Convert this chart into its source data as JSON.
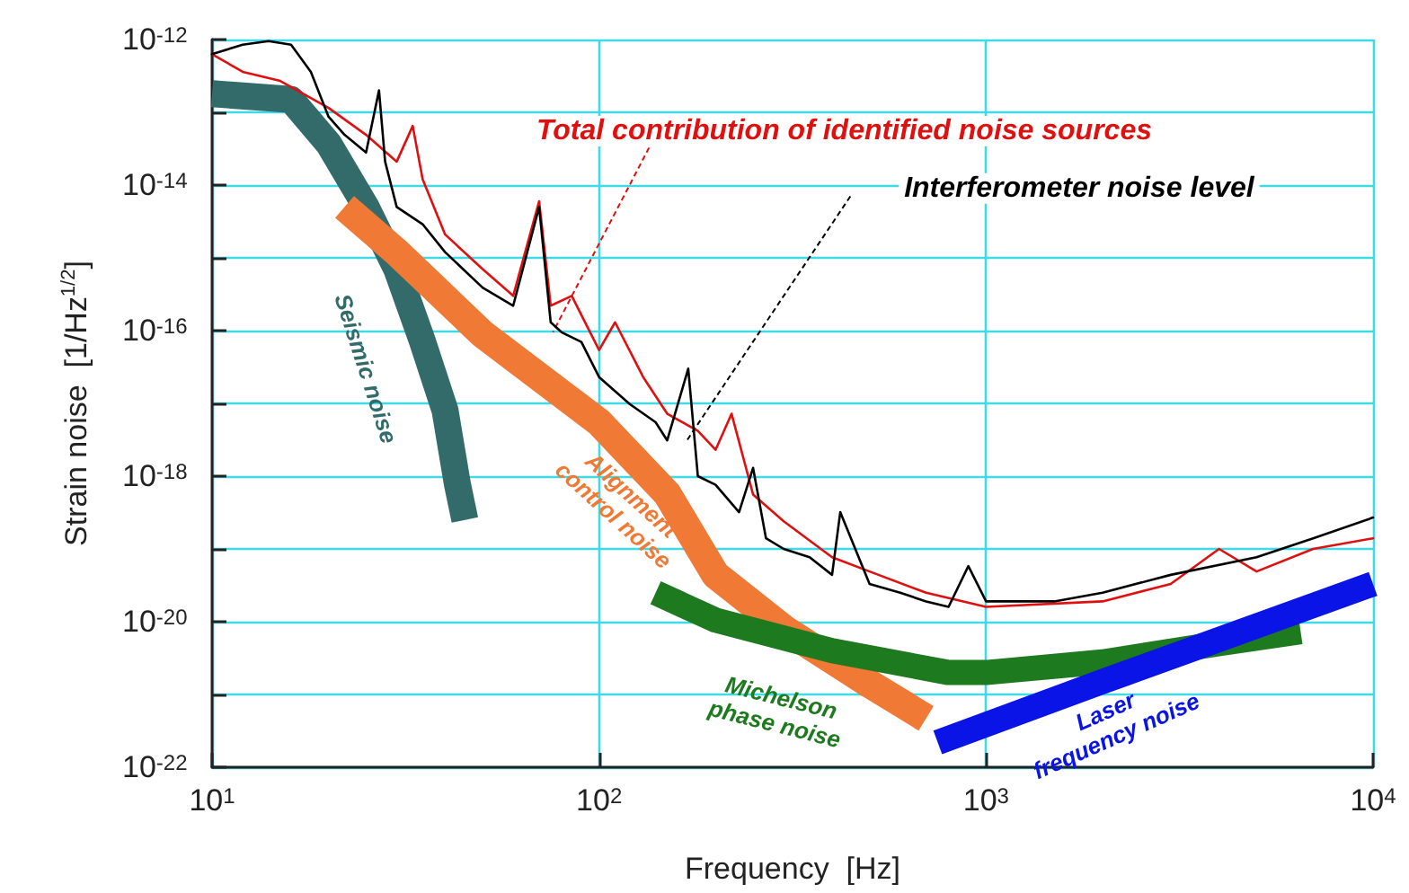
{
  "chart_data": {
    "type": "line",
    "xlabel": "Frequency  [Hz]",
    "ylabel": "Strain noise  [1/Hz$^{1/2}$]",
    "log": "xy",
    "grid": true,
    "legend": false,
    "marker": "none",
    "line_style": "solid",
    "xlim": [
      10,
      10000
    ],
    "ylim": [
      1e-22,
      1e-12
    ],
    "xticks": [
      {
        "value": 10,
        "label": "10$^{1}$"
      },
      {
        "value": 100,
        "label": "10$^{2}$"
      },
      {
        "value": 1000,
        "label": "10$^{3}$"
      },
      {
        "value": 10000,
        "label": "10$^{4}$"
      }
    ],
    "yticks": [
      {
        "value": 1e-22,
        "label": "10$^{-22}$"
      },
      {
        "value": 1e-21,
        "label": null
      },
      {
        "value": 1e-20,
        "label": "10$^{-20}$"
      },
      {
        "value": 1e-19,
        "label": null
      },
      {
        "value": 1e-18,
        "label": "10$^{-18}$"
      },
      {
        "value": 1e-17,
        "label": null
      },
      {
        "value": 1e-16,
        "label": "10$^{-16}$"
      },
      {
        "value": 1e-15,
        "label": null
      },
      {
        "value": 1e-14,
        "label": "10$^{-14}$"
      },
      {
        "value": 1e-13,
        "label": null
      },
      {
        "value": 1e-12,
        "label": "10$^{-12}$"
      }
    ],
    "series": [
      {
        "name": "Seismic noise",
        "color": "#336b6b",
        "x": [
          10,
          16,
          20,
          25,
          30,
          35,
          40,
          43,
          45
        ],
        "values": [
          1.8e-13,
          1.5e-13,
          3.7e-14,
          5e-15,
          7e-16,
          7e-17,
          8e-18,
          8e-19,
          2.5e-19
        ]
      },
      {
        "name": "Alignment control noise",
        "color": "#f07a35",
        "x": [
          22,
          30,
          50,
          100,
          150,
          200,
          300,
          500,
          700
        ],
        "values": [
          5e-15,
          1.2e-15,
          9e-17,
          5.5e-18,
          5.7e-19,
          4.4e-20,
          8e-21,
          1.4e-21,
          4.7e-22
        ]
      },
      {
        "name": "Michelson phase noise",
        "color": "#1e7a1e",
        "x": [
          140,
          200,
          400,
          800,
          1000,
          2000,
          4000,
          6500
        ],
        "values": [
          2.5e-20,
          1.05e-20,
          4e-21,
          2e-21,
          2e-21,
          2.8e-21,
          5e-21,
          7.3e-21
        ]
      },
      {
        "name": "Laser frequency noise",
        "color": "#0a14e6",
        "x": [
          750,
          2000,
          10000
        ],
        "values": [
          2.2e-22,
          1.5e-21,
          3.3e-20
        ]
      },
      {
        "name": "Total contribution of identified noise sources",
        "color": "#e01010",
        "x": [
          10,
          12,
          15,
          20,
          25,
          30,
          33,
          35,
          40,
          50,
          60,
          70,
          75,
          85,
          100,
          110,
          130,
          150,
          180,
          200,
          220,
          250,
          300,
          400,
          500,
          700,
          1000,
          2000,
          3000,
          4000,
          5000,
          7000,
          10000
        ],
        "values": [
          6.3e-13,
          3.6e-13,
          2.7e-13,
          1.15e-13,
          4.9e-14,
          2.1e-14,
          6.5e-14,
          1.2e-14,
          2.1e-15,
          7e-16,
          3e-16,
          6e-15,
          2.2e-16,
          3e-16,
          5.4e-17,
          1.3e-16,
          2.3e-17,
          7.2e-18,
          4.2e-18,
          2.3e-18,
          7.2e-18,
          5.6e-19,
          2.4e-19,
          7.7e-20,
          4.9e-20,
          2.5e-20,
          1.6e-20,
          1.9e-20,
          3.3e-20,
          1e-19,
          4.9e-20,
          1e-19,
          1.4e-19
        ]
      },
      {
        "name": "Interferometer noise level",
        "color": "#000000",
        "x": [
          10,
          12,
          14,
          16,
          18,
          20,
          22,
          25,
          27,
          28,
          30,
          35,
          40,
          50,
          60,
          70,
          75,
          80,
          90,
          100,
          120,
          140,
          150,
          170,
          180,
          200,
          230,
          250,
          270,
          300,
          350,
          400,
          420,
          500,
          600,
          700,
          800,
          900,
          1000,
          1500,
          2000,
          3000,
          5000,
          7000,
          10000
        ],
        "values": [
          6.3e-13,
          8.5e-13,
          9.5e-13,
          8.5e-13,
          3.6e-13,
          8.7e-14,
          4.9e-14,
          2.8e-14,
          2e-13,
          2.1e-14,
          5e-15,
          2.9e-15,
          1.2e-15,
          3.9e-16,
          2.2e-16,
          5e-15,
          1.3e-16,
          9.5e-17,
          7e-17,
          2.3e-17,
          9.8e-18,
          5.5e-18,
          3.1e-18,
          3e-17,
          1e-18,
          7.6e-19,
          3.2e-19,
          1.3e-18,
          1.4e-19,
          1e-19,
          7.7e-20,
          4.4e-20,
          3.2e-19,
          3.3e-20,
          2.5e-20,
          1.9e-20,
          1.6e-20,
          5.8e-20,
          1.9e-20,
          1.9e-20,
          2.5e-20,
          4.4e-20,
          7.7e-20,
          1.4e-19,
          2.7e-19
        ]
      }
    ]
  }
}
